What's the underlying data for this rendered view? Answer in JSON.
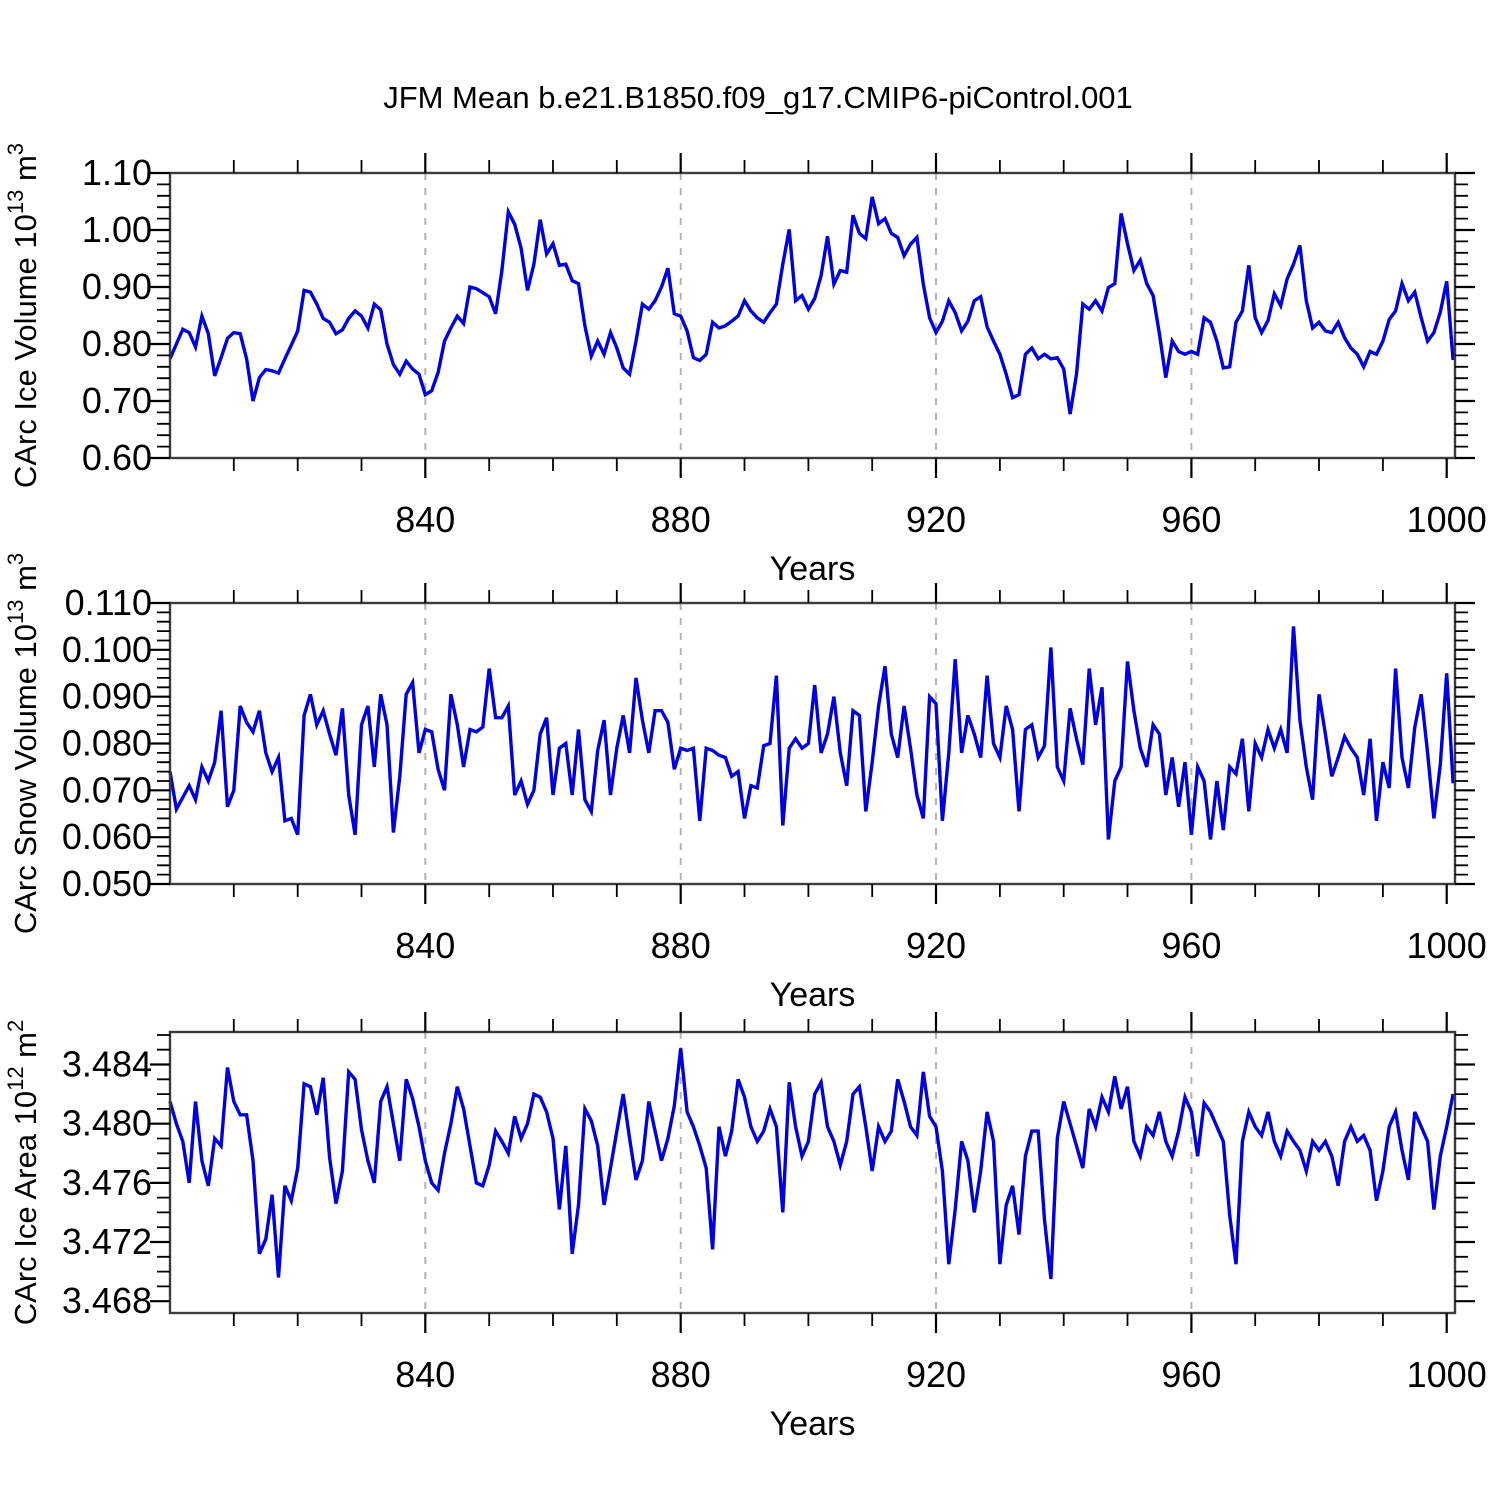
{
  "chart_data": {
    "type": "line",
    "title": "JFM Mean b.e21.B1850.f09_g17.CMIP6-piControl.001",
    "xlabel": "Years",
    "line_color": "#0000e0",
    "grid_color": "#b3b3b3",
    "frame_color": "#3c3c3c",
    "tick_color": "#000000",
    "legend": "none",
    "grid": "vertical-dashed-only",
    "x": {
      "start_year": 800,
      "end_year": 1001,
      "axis_min": 800,
      "axis_max": 1001.3,
      "major_ticks": [
        840,
        880,
        920,
        960,
        1000
      ],
      "major_tick_labels": [
        "840",
        "880",
        "920",
        "960",
        "1000"
      ],
      "minor_step": 10,
      "grid_years": [
        840,
        880,
        920,
        960
      ]
    },
    "panels": [
      {
        "id": "ice-volume",
        "ylabel": {
          "base": "CArc Ice Volume 10",
          "sup": "13",
          "mid": " m",
          "sup2": "3"
        },
        "y_axis": {
          "min": 0.6,
          "max": 1.1,
          "minor_step": 0.02,
          "major_ticks": [
            0.6,
            0.7,
            0.8,
            0.9,
            1.0,
            1.1
          ],
          "tick_labels": [
            "0.60",
            "0.70",
            "0.80",
            "0.90",
            "1.00",
            "1.10"
          ]
        },
        "values": [
          0.774,
          0.8,
          0.826,
          0.82,
          0.795,
          0.849,
          0.818,
          0.744,
          0.776,
          0.81,
          0.82,
          0.818,
          0.774,
          0.7,
          0.741,
          0.755,
          0.753,
          0.749,
          0.774,
          0.798,
          0.823,
          0.894,
          0.891,
          0.87,
          0.845,
          0.838,
          0.818,
          0.825,
          0.845,
          0.858,
          0.849,
          0.828,
          0.87,
          0.86,
          0.8,
          0.764,
          0.747,
          0.77,
          0.756,
          0.747,
          0.711,
          0.718,
          0.75,
          0.805,
          0.828,
          0.849,
          0.836,
          0.9,
          0.897,
          0.89,
          0.883,
          0.853,
          0.929,
          1.032,
          1.01,
          0.968,
          0.894,
          0.94,
          1.018,
          0.958,
          0.976,
          0.938,
          0.94,
          0.911,
          0.906,
          0.832,
          0.779,
          0.805,
          0.782,
          0.82,
          0.793,
          0.758,
          0.747,
          0.805,
          0.87,
          0.861,
          0.876,
          0.9,
          0.933,
          0.853,
          0.849,
          0.823,
          0.776,
          0.771,
          0.782,
          0.838,
          0.828,
          0.832,
          0.84,
          0.849,
          0.876,
          0.858,
          0.846,
          0.838,
          0.855,
          0.87,
          0.94,
          1.001,
          0.876,
          0.885,
          0.861,
          0.88,
          0.92,
          0.989,
          0.905,
          0.929,
          0.926,
          1.026,
          0.994,
          0.985,
          1.058,
          1.011,
          1.02,
          0.994,
          0.987,
          0.955,
          0.975,
          0.987,
          0.905,
          0.846,
          0.82,
          0.84,
          0.876,
          0.855,
          0.823,
          0.84,
          0.876,
          0.883,
          0.83,
          0.805,
          0.782,
          0.747,
          0.706,
          0.711,
          0.782,
          0.793,
          0.774,
          0.782,
          0.774,
          0.776,
          0.756,
          0.677,
          0.747,
          0.87,
          0.861,
          0.876,
          0.858,
          0.899,
          0.906,
          1.029,
          0.976,
          0.929,
          0.947,
          0.906,
          0.885,
          0.818,
          0.741,
          0.805,
          0.787,
          0.782,
          0.787,
          0.782,
          0.846,
          0.838,
          0.805,
          0.758,
          0.76,
          0.838,
          0.858,
          0.938,
          0.846,
          0.82,
          0.841,
          0.888,
          0.867,
          0.914,
          0.94,
          0.973,
          0.876,
          0.828,
          0.838,
          0.823,
          0.82,
          0.838,
          0.811,
          0.793,
          0.782,
          0.76,
          0.787,
          0.782,
          0.805,
          0.843,
          0.858,
          0.906,
          0.876,
          0.891,
          0.846,
          0.805,
          0.82,
          0.856,
          0.91,
          0.772
        ]
      },
      {
        "id": "snow-volume",
        "ylabel": {
          "base": "CArc Snow Volume 10",
          "sup": "13",
          "mid": " m",
          "sup2": "3"
        },
        "y_axis": {
          "min": 0.05,
          "max": 0.11,
          "minor_step": 0.002,
          "major_ticks": [
            0.05,
            0.06,
            0.07,
            0.08,
            0.09,
            0.1,
            0.11
          ],
          "tick_labels": [
            "0.050",
            "0.060",
            "0.070",
            "0.080",
            "0.090",
            "0.100",
            "0.110"
          ]
        },
        "values": [
          0.074,
          0.066,
          0.0685,
          0.071,
          0.068,
          0.075,
          0.072,
          0.076,
          0.087,
          0.0665,
          0.07,
          0.088,
          0.0845,
          0.0825,
          0.087,
          0.078,
          0.074,
          0.077,
          0.0635,
          0.064,
          0.0605,
          0.086,
          0.0905,
          0.084,
          0.087,
          0.082,
          0.0775,
          0.0875,
          0.069,
          0.0605,
          0.084,
          0.088,
          0.075,
          0.0905,
          0.084,
          0.061,
          0.073,
          0.0905,
          0.093,
          0.078,
          0.083,
          0.0825,
          0.0745,
          0.07,
          0.0905,
          0.084,
          0.075,
          0.083,
          0.0825,
          0.0835,
          0.096,
          0.0855,
          0.0855,
          0.088,
          0.069,
          0.072,
          0.067,
          0.07,
          0.082,
          0.0855,
          0.069,
          0.079,
          0.08,
          0.069,
          0.083,
          0.068,
          0.0655,
          0.0785,
          0.085,
          0.069,
          0.079,
          0.086,
          0.078,
          0.094,
          0.085,
          0.078,
          0.087,
          0.087,
          0.0845,
          0.0745,
          0.079,
          0.0785,
          0.079,
          0.0635,
          0.079,
          0.0785,
          0.0775,
          0.077,
          0.073,
          0.074,
          0.064,
          0.071,
          0.0705,
          0.0795,
          0.08,
          0.0945,
          0.0625,
          0.079,
          0.081,
          0.079,
          0.08,
          0.0925,
          0.078,
          0.082,
          0.09,
          0.078,
          0.071,
          0.087,
          0.086,
          0.0655,
          0.076,
          0.088,
          0.0965,
          0.082,
          0.077,
          0.088,
          0.079,
          0.069,
          0.064,
          0.09,
          0.0885,
          0.0635,
          0.078,
          0.098,
          0.078,
          0.086,
          0.082,
          0.077,
          0.0945,
          0.08,
          0.077,
          0.088,
          0.083,
          0.0655,
          0.083,
          0.084,
          0.077,
          0.0795,
          0.1005,
          0.075,
          0.072,
          0.0875,
          0.081,
          0.0755,
          0.096,
          0.084,
          0.092,
          0.0595,
          0.072,
          0.075,
          0.0975,
          0.087,
          0.079,
          0.075,
          0.084,
          0.082,
          0.069,
          0.077,
          0.0665,
          0.076,
          0.0605,
          0.075,
          0.072,
          0.0595,
          0.072,
          0.0615,
          0.075,
          0.0735,
          0.081,
          0.0655,
          0.08,
          0.077,
          0.083,
          0.079,
          0.083,
          0.078,
          0.105,
          0.085,
          0.075,
          0.068,
          0.0905,
          0.082,
          0.073,
          0.077,
          0.0815,
          0.079,
          0.077,
          0.069,
          0.081,
          0.0635,
          0.076,
          0.0705,
          0.096,
          0.077,
          0.0705,
          0.0835,
          0.0905,
          0.078,
          0.064,
          0.0755,
          0.095,
          0.0715
        ]
      },
      {
        "id": "ice-area",
        "ylabel": {
          "base": "CArc Ice Area 10",
          "sup": "12",
          "mid": " m",
          "sup2": "2"
        },
        "y_axis": {
          "min": 3.4672,
          "max": 3.4862,
          "minor_step": 0.001,
          "major_ticks": [
            3.468,
            3.472,
            3.476,
            3.48,
            3.484
          ],
          "tick_labels": [
            "3.468",
            "3.472",
            "3.476",
            "3.480",
            "3.484"
          ]
        },
        "values": [
          3.4815,
          3.48,
          3.4788,
          3.476,
          3.4815,
          3.4775,
          3.4758,
          3.479,
          3.4785,
          3.4838,
          3.4815,
          3.4806,
          3.4806,
          3.4775,
          3.4712,
          3.4722,
          3.4752,
          3.4696,
          3.4758,
          3.4748,
          3.477,
          3.4827,
          3.4825,
          3.4806,
          3.4831,
          3.4777,
          3.4746,
          3.4768,
          3.4835,
          3.483,
          3.4796,
          3.4775,
          3.476,
          3.4815,
          3.4825,
          3.48,
          3.4775,
          3.483,
          3.4817,
          3.4798,
          3.4775,
          3.476,
          3.4755,
          3.478,
          3.48,
          3.4825,
          3.481,
          3.4785,
          3.476,
          3.4758,
          3.4772,
          3.4795,
          3.4788,
          3.478,
          3.4805,
          3.479,
          3.48,
          3.482,
          3.4818,
          3.4808,
          3.479,
          3.4742,
          3.4785,
          3.4712,
          3.4745,
          3.481,
          3.4802,
          3.4785,
          3.4745,
          3.477,
          3.4795,
          3.482,
          3.479,
          3.4762,
          3.4775,
          3.4815,
          3.4795,
          3.4775,
          3.479,
          3.4812,
          3.4851,
          3.4808,
          3.4798,
          3.4785,
          3.477,
          3.4715,
          3.4798,
          3.4778,
          3.4795,
          3.483,
          3.4818,
          3.4798,
          3.4788,
          3.4795,
          3.481,
          3.4798,
          3.474,
          3.4828,
          3.4798,
          3.4778,
          3.4788,
          3.482,
          3.4828,
          3.4798,
          3.4788,
          3.4772,
          3.4788,
          3.482,
          3.4825,
          3.4798,
          3.4768,
          3.4798,
          3.4788,
          3.4795,
          3.483,
          3.4815,
          3.4798,
          3.4792,
          3.4835,
          3.4805,
          3.4798,
          3.4768,
          3.4705,
          3.4742,
          3.4788,
          3.4775,
          3.474,
          3.4768,
          3.4808,
          3.4788,
          3.4705,
          3.4745,
          3.4758,
          3.4725,
          3.4778,
          3.4795,
          3.4795,
          3.4735,
          3.4695,
          3.479,
          3.4815,
          3.48,
          3.4785,
          3.477,
          3.481,
          3.4798,
          3.4818,
          3.4808,
          3.4832,
          3.481,
          3.4825,
          3.4788,
          3.4778,
          3.4798,
          3.4792,
          3.4808,
          3.4788,
          3.4778,
          3.4795,
          3.4818,
          3.4808,
          3.4778,
          3.4814,
          3.4808,
          3.4798,
          3.4788,
          3.4738,
          3.4705,
          3.4788,
          3.4808,
          3.4798,
          3.4792,
          3.4808,
          3.4788,
          3.4778,
          3.4795,
          3.4788,
          3.4782,
          3.4768,
          3.4788,
          3.4782,
          3.4788,
          3.4778,
          3.4758,
          3.4788,
          3.4798,
          3.4788,
          3.4792,
          3.4782,
          3.4748,
          3.4768,
          3.4798,
          3.4808,
          3.4782,
          3.4762,
          3.4808,
          3.4798,
          3.4788,
          3.4742,
          3.4778,
          3.4798,
          3.482
        ]
      }
    ]
  }
}
